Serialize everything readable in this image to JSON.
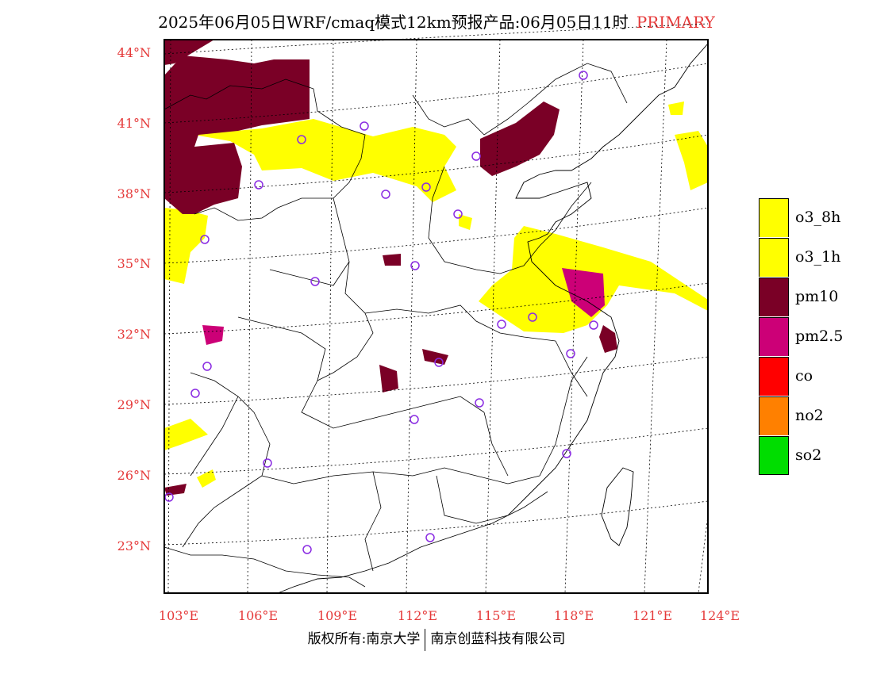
{
  "title": {
    "main": "2025年06月05日WRF/cmaq模式12km预报产品:06月05日11时",
    "tag": "PRIMARY"
  },
  "axes": {
    "lat_labels": [
      "44°N",
      "41°N",
      "38°N",
      "35°N",
      "32°N",
      "29°N",
      "26°N",
      "23°N"
    ],
    "lon_labels": [
      "103°E",
      "106°E",
      "109°E",
      "112°E",
      "115°E",
      "118°E",
      "121°E",
      "124°E"
    ],
    "label_color": "#e53a3a"
  },
  "legend": [
    {
      "label": "o3_8h",
      "color": "#ffff00"
    },
    {
      "label": "o3_1h",
      "color": "#ffff00"
    },
    {
      "label": "pm10",
      "color": "#7a0026"
    },
    {
      "label": "pm2.5",
      "color": "#cc0077"
    },
    {
      "label": "co",
      "color": "#ff0000"
    },
    {
      "label": "no2",
      "color": "#ff8000"
    },
    {
      "label": "so2",
      "color": "#00dd00"
    }
  ],
  "footer": {
    "left": "版权所有:南京大学",
    "right": "南京创蓝科技有限公司"
  },
  "colors": {
    "station_marker": "#8a2be2"
  }
}
